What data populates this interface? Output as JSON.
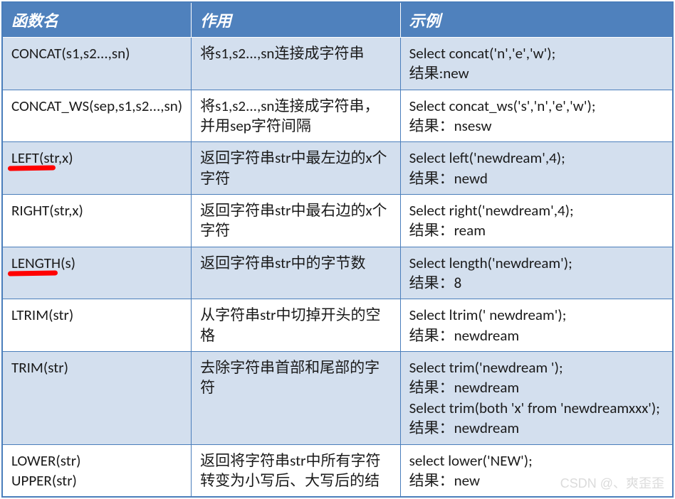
{
  "table": {
    "headers": {
      "col1": "函数名",
      "col2": "作用",
      "col3": "示例"
    },
    "rows": [
      {
        "fn": "CONCAT(s1,s2...,sn)",
        "desc": "将s1,s2...,sn连接成字符串",
        "example": "Select concat('n','e','w');\n结果:new",
        "highlight": false
      },
      {
        "fn": "CONCAT_WS(sep,s1,s2...,sn)",
        "desc": "将s1,s2...,sn连接成字符串，并用sep字符间隔",
        "example": "Select concat_ws('s','n','e','w');\n结果：nsesw",
        "highlight": false
      },
      {
        "fn": "LEFT(str,x)",
        "desc": "返回字符串str中最左边的x个字符",
        "example": "Select left('newdream',4);\n结果：newd",
        "highlight": true
      },
      {
        "fn": "RIGHT(str,x)",
        "desc": "返回字符串str中最右边的x个字符",
        "example": "Select  right('newdream',4);\n结果：ream",
        "highlight": false
      },
      {
        "fn": "LENGTH(s)",
        "desc": "返回字符串str中的字节数",
        "example": "Select length('newdream');\n结果：8",
        "highlight": true
      },
      {
        "fn": "LTRIM(str)",
        "desc": "从字符串str中切掉开头的空格",
        "example": "Select ltrim('   newdream');\n结果：newdream",
        "highlight": false
      },
      {
        "fn": "TRIM(str)",
        "desc": "去除字符串首部和尾部的字符",
        "example": "Select  trim('newdream  ');\n结果：newdream\nSelect  trim(both 'x' from 'newdreamxxx');\n结果：newdream",
        "highlight": false
      },
      {
        "fn": "LOWER(str)\nUPPER(str)",
        "desc": "返回将字符串str中所有字符转变为小写后、大写后的结",
        "example": "select  lower('NEW');\n结果：new",
        "highlight": false
      }
    ]
  },
  "watermark": "CSDN @、爽歪歪",
  "colors": {
    "header_bg": "#4f81bd",
    "header_text": "#ffffff",
    "alt_row_bg": "#d3dfee",
    "border": "#4a7ebb",
    "highlight": "#ff0000"
  }
}
